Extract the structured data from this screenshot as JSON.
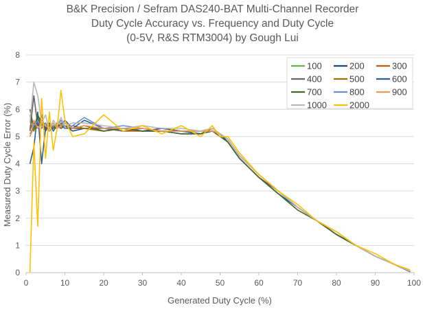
{
  "chart_data": {
    "type": "line",
    "title_lines": [
      "B&K Precision / Sefram DAS240-BAT Multi-Channel Recorder",
      "Duty Cycle Accuracy vs. Frequency and Duty Cycle",
      "(0-5V, R&S RTM3004) by Gough Lui"
    ],
    "xlabel": "Generated Duty Cycle (%)",
    "ylabel": "Measured Duty Cycle Error (%)",
    "xlim": [
      0,
      100
    ],
    "ylim": [
      0,
      8
    ],
    "x_ticks": [
      "0",
      "10",
      "20",
      "30",
      "40",
      "50",
      "60",
      "70",
      "80",
      "90",
      "100"
    ],
    "y_ticks": [
      "0",
      "1",
      "2",
      "3",
      "4",
      "5",
      "6",
      "7",
      "8"
    ],
    "grid": "horizontal",
    "legend_position": "top-right",
    "x": [
      1,
      2,
      3,
      4,
      5,
      6,
      7,
      8,
      9,
      10,
      12,
      15,
      20,
      25,
      30,
      35,
      40,
      45,
      48,
      50,
      52,
      55,
      60,
      65,
      70,
      75,
      80,
      85,
      90,
      95,
      99
    ],
    "series": [
      {
        "name": "100",
        "color": "#70AD47",
        "values": [
          5.8,
          5.2,
          5.6,
          5.4,
          5.5,
          5.3,
          5.5,
          5.3,
          5.4,
          5.5,
          5.3,
          5.4,
          5.3,
          5.3,
          5.2,
          5.3,
          5.2,
          5.2,
          5.3,
          5.1,
          4.9,
          4.3,
          3.6,
          3.0,
          2.4,
          1.9,
          1.4,
          1.0,
          0.6,
          0.3,
          0.05
        ]
      },
      {
        "name": "200",
        "color": "#264478",
        "values": [
          5.3,
          5.5,
          5.4,
          5.6,
          5.3,
          5.4,
          5.3,
          5.4,
          5.3,
          5.4,
          5.2,
          5.3,
          5.2,
          5.3,
          5.2,
          5.2,
          5.1,
          5.1,
          5.2,
          5.1,
          4.8,
          4.2,
          3.5,
          2.9,
          2.4,
          1.9,
          1.4,
          1.0,
          0.6,
          0.3,
          0.03
        ]
      },
      {
        "name": "300",
        "color": "#C55A11",
        "values": [
          5.0,
          5.4,
          5.3,
          5.5,
          5.2,
          5.4,
          5.3,
          5.5,
          5.3,
          5.4,
          5.3,
          5.3,
          5.3,
          5.2,
          5.2,
          5.3,
          5.2,
          5.2,
          5.2,
          5.1,
          4.9,
          4.3,
          3.6,
          3.0,
          2.4,
          1.9,
          1.5,
          1.0,
          0.6,
          0.3,
          0.05
        ]
      },
      {
        "name": "400",
        "color": "#636363",
        "values": [
          5.2,
          6.5,
          5.4,
          5.8,
          5.2,
          5.5,
          5.3,
          5.4,
          5.3,
          5.4,
          5.3,
          5.3,
          5.3,
          5.2,
          5.3,
          5.2,
          5.2,
          5.1,
          5.3,
          5.1,
          4.8,
          4.2,
          3.5,
          3.0,
          2.4,
          1.9,
          1.4,
          1.0,
          0.6,
          0.3,
          0.05
        ]
      },
      {
        "name": "500",
        "color": "#997300",
        "values": [
          5.4,
          5.2,
          5.7,
          5.3,
          5.5,
          5.2,
          5.4,
          5.3,
          5.5,
          5.3,
          5.4,
          5.3,
          5.2,
          5.3,
          5.2,
          5.3,
          5.2,
          5.1,
          5.2,
          5.1,
          4.9,
          4.3,
          3.6,
          3.0,
          2.4,
          1.9,
          1.4,
          1.0,
          0.6,
          0.3,
          0.04
        ]
      },
      {
        "name": "600",
        "color": "#255E91",
        "values": [
          4.0,
          4.6,
          5.9,
          4.0,
          5.3,
          5.5,
          5.2,
          5.4,
          5.4,
          5.6,
          5.3,
          5.6,
          5.3,
          5.3,
          5.2,
          5.3,
          5.2,
          5.1,
          5.2,
          5.1,
          4.8,
          4.2,
          3.5,
          2.9,
          2.4,
          1.9,
          1.4,
          1.0,
          0.6,
          0.3,
          0.04
        ]
      },
      {
        "name": "700",
        "color": "#43682B",
        "values": [
          6.0,
          5.3,
          5.8,
          5.5,
          5.4,
          5.2,
          5.4,
          5.3,
          5.4,
          5.3,
          5.3,
          5.4,
          5.2,
          5.3,
          5.2,
          5.2,
          5.1,
          5.1,
          5.2,
          5.0,
          4.8,
          4.2,
          3.5,
          2.9,
          2.3,
          1.9,
          1.4,
          1.0,
          0.6,
          0.3,
          0.03
        ]
      },
      {
        "name": "800",
        "color": "#698ED0",
        "values": [
          5.1,
          5.4,
          5.6,
          5.3,
          5.5,
          5.3,
          5.4,
          5.4,
          5.6,
          5.3,
          5.4,
          5.7,
          5.3,
          5.4,
          5.3,
          5.2,
          5.2,
          5.2,
          5.3,
          5.1,
          4.9,
          4.3,
          3.6,
          3.0,
          2.4,
          1.9,
          1.5,
          1.0,
          0.6,
          0.3,
          0.05
        ]
      },
      {
        "name": "900",
        "color": "#F1975A",
        "values": [
          5.0,
          5.6,
          5.3,
          5.5,
          5.4,
          5.3,
          5.5,
          5.3,
          5.4,
          5.5,
          5.3,
          5.4,
          5.3,
          5.3,
          5.3,
          5.2,
          5.2,
          5.2,
          5.2,
          5.1,
          4.9,
          4.3,
          3.6,
          3.0,
          2.4,
          1.9,
          1.5,
          1.0,
          0.6,
          0.3,
          0.06
        ]
      },
      {
        "name": "1000",
        "color": "#B7B7B7",
        "values": [
          5.5,
          7.0,
          6.5,
          5.5,
          5.8,
          5.2,
          5.6,
          5.4,
          5.7,
          5.4,
          5.5,
          5.5,
          5.4,
          5.3,
          5.4,
          5.3,
          5.3,
          5.2,
          5.3,
          5.1,
          4.9,
          4.3,
          3.6,
          3.0,
          2.4,
          1.9,
          1.5,
          1.0,
          0.6,
          0.3,
          0.05
        ]
      },
      {
        "name": "2000",
        "color": "#FFC000",
        "values": [
          0.0,
          4.8,
          1.7,
          6.4,
          4.2,
          5.9,
          4.5,
          5.3,
          6.7,
          5.6,
          5.0,
          5.1,
          5.8,
          5.2,
          5.4,
          5.1,
          5.4,
          5.0,
          5.4,
          5.0,
          5.0,
          4.4,
          3.6,
          3.0,
          2.5,
          1.9,
          1.5,
          1.0,
          0.7,
          0.3,
          0.1
        ]
      }
    ]
  }
}
